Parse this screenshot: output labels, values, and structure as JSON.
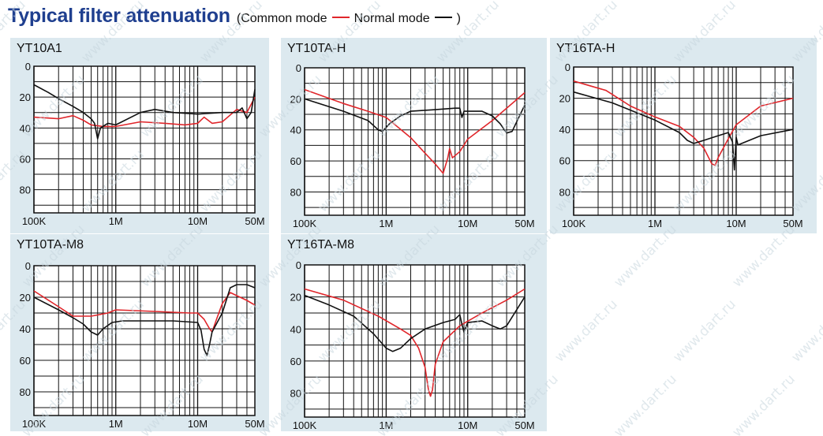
{
  "header": {
    "title": "Typical filter attenuation",
    "legend_prefix": "(Common mode",
    "common_label": "Normal mode",
    "legend_suffix": ")"
  },
  "colors": {
    "common": "#e0262b",
    "normal": "#111111",
    "title": "#1f3f8f",
    "panel": "#dce9ef"
  },
  "chart_data": [
    {
      "type": "line",
      "title": "YT10A1",
      "xscale": "log",
      "xlim": [
        100000,
        50000000
      ],
      "ylim": [
        0,
        95
      ],
      "y_ticks": [
        0,
        20,
        40,
        60,
        80
      ],
      "x_ticks": [
        "100K",
        "1M",
        "10M",
        "50M"
      ],
      "xlabel": "",
      "ylabel": "",
      "series": [
        {
          "name": "Common mode",
          "points": [
            [
              100000,
              33
            ],
            [
              200000,
              34
            ],
            [
              300000,
              32
            ],
            [
              400000,
              35
            ],
            [
              500000,
              38
            ],
            [
              700000,
              39
            ],
            [
              1000000,
              39
            ],
            [
              2000000,
              36
            ],
            [
              4000000,
              37
            ],
            [
              7000000,
              38
            ],
            [
              10000000,
              37
            ],
            [
              12000000,
              33
            ],
            [
              15000000,
              37
            ],
            [
              20000000,
              36
            ],
            [
              30000000,
              28
            ],
            [
              40000000,
              30
            ],
            [
              50000000,
              20
            ]
          ]
        },
        {
          "name": "Normal mode",
          "points": [
            [
              100000,
              12
            ],
            [
              150000,
              17
            ],
            [
              200000,
              21
            ],
            [
              300000,
              26
            ],
            [
              400000,
              30
            ],
            [
              500000,
              34
            ],
            [
              550000,
              37
            ],
            [
              600000,
              47
            ],
            [
              650000,
              40
            ],
            [
              800000,
              37
            ],
            [
              1000000,
              38
            ],
            [
              2000000,
              30
            ],
            [
              3000000,
              28
            ],
            [
              5000000,
              30
            ],
            [
              10000000,
              31
            ],
            [
              20000000,
              30
            ],
            [
              30000000,
              30
            ],
            [
              35000000,
              27
            ],
            [
              40000000,
              34
            ],
            [
              45000000,
              30
            ],
            [
              50000000,
              15
            ]
          ]
        }
      ]
    },
    {
      "type": "line",
      "title": "YT10TA-H",
      "xscale": "log",
      "xlim": [
        100000,
        50000000
      ],
      "ylim": [
        0,
        95
      ],
      "y_ticks": [
        0,
        20,
        40,
        60,
        80
      ],
      "x_ticks": [
        "100K",
        "1M",
        "10M",
        "50M"
      ],
      "xlabel": "",
      "ylabel": "",
      "series": [
        {
          "name": "Common mode",
          "points": [
            [
              100000,
              14
            ],
            [
              300000,
              23
            ],
            [
              600000,
              28
            ],
            [
              1000000,
              32
            ],
            [
              2000000,
              45
            ],
            [
              3000000,
              55
            ],
            [
              4000000,
              62
            ],
            [
              5000000,
              68
            ],
            [
              5700000,
              58
            ],
            [
              6000000,
              52
            ],
            [
              6500000,
              58
            ],
            [
              8000000,
              54
            ],
            [
              10000000,
              46
            ],
            [
              20000000,
              34
            ],
            [
              50000000,
              16
            ]
          ]
        },
        {
          "name": "Normal mode",
          "points": [
            [
              100000,
              20
            ],
            [
              300000,
              28
            ],
            [
              600000,
              34
            ],
            [
              800000,
              40
            ],
            [
              900000,
              41
            ],
            [
              1100000,
              36
            ],
            [
              1500000,
              31
            ],
            [
              2000000,
              28
            ],
            [
              4000000,
              27
            ],
            [
              7000000,
              26
            ],
            [
              8000000,
              26
            ],
            [
              8500000,
              32
            ],
            [
              9000000,
              28
            ],
            [
              15000000,
              28
            ],
            [
              20000000,
              31
            ],
            [
              25000000,
              36
            ],
            [
              30000000,
              42
            ],
            [
              35000000,
              41
            ],
            [
              50000000,
              24
            ]
          ]
        }
      ]
    },
    {
      "type": "line",
      "title": "YT16TA-H",
      "xscale": "log",
      "xlim": [
        100000,
        50000000
      ],
      "ylim": [
        0,
        95
      ],
      "y_ticks": [
        0,
        20,
        40,
        60,
        80
      ],
      "x_ticks": [
        "100K",
        "1M",
        "10M",
        "50M"
      ],
      "xlabel": "",
      "ylabel": "",
      "series": [
        {
          "name": "Common mode",
          "points": [
            [
              100000,
              9
            ],
            [
              250000,
              15
            ],
            [
              500000,
              25
            ],
            [
              1000000,
              32
            ],
            [
              2000000,
              38
            ],
            [
              3000000,
              45
            ],
            [
              4000000,
              52
            ],
            [
              5000000,
              62
            ],
            [
              5500000,
              63
            ],
            [
              6000000,
              58
            ],
            [
              8000000,
              46
            ],
            [
              10000000,
              37
            ],
            [
              20000000,
              25
            ],
            [
              50000000,
              20
            ]
          ]
        },
        {
          "name": "Normal mode",
          "points": [
            [
              100000,
              16
            ],
            [
              300000,
              23
            ],
            [
              1000000,
              34
            ],
            [
              2000000,
              42
            ],
            [
              2500000,
              47
            ],
            [
              3000000,
              49
            ],
            [
              4000000,
              47
            ],
            [
              6000000,
              44
            ],
            [
              8000000,
              42
            ],
            [
              9000000,
              48
            ],
            [
              9500000,
              66
            ],
            [
              10000000,
              45
            ],
            [
              10500000,
              50
            ],
            [
              20000000,
              44
            ],
            [
              50000000,
              40
            ]
          ]
        }
      ]
    },
    {
      "type": "line",
      "title": "YT10TA-M8",
      "xscale": "log",
      "xlim": [
        100000,
        50000000
      ],
      "ylim": [
        0,
        95
      ],
      "y_ticks": [
        0,
        20,
        40,
        60,
        80
      ],
      "x_ticks": [
        "100K",
        "1M",
        "10M",
        "50M"
      ],
      "xlabel": "",
      "ylabel": "",
      "series": [
        {
          "name": "Common mode",
          "points": [
            [
              100000,
              16
            ],
            [
              200000,
              26
            ],
            [
              300000,
              32
            ],
            [
              500000,
              32
            ],
            [
              800000,
              30
            ],
            [
              1000000,
              28
            ],
            [
              3000000,
              29
            ],
            [
              8000000,
              30
            ],
            [
              10000000,
              30
            ],
            [
              12000000,
              34
            ],
            [
              14000000,
              40
            ],
            [
              15000000,
              42
            ],
            [
              17000000,
              34
            ],
            [
              20000000,
              24
            ],
            [
              25000000,
              17
            ],
            [
              30000000,
              19
            ],
            [
              40000000,
              22
            ],
            [
              50000000,
              25
            ]
          ]
        },
        {
          "name": "Normal mode",
          "points": [
            [
              100000,
              20
            ],
            [
              200000,
              28
            ],
            [
              300000,
              33
            ],
            [
              400000,
              37
            ],
            [
              500000,
              42
            ],
            [
              600000,
              44
            ],
            [
              700000,
              40
            ],
            [
              900000,
              36
            ],
            [
              1200000,
              35
            ],
            [
              3000000,
              35
            ],
            [
              5000000,
              35
            ],
            [
              10000000,
              36
            ],
            [
              11000000,
              41
            ],
            [
              12000000,
              53
            ],
            [
              13000000,
              57
            ],
            [
              14000000,
              50
            ],
            [
              15000000,
              42
            ],
            [
              20000000,
              30
            ],
            [
              25000000,
              14
            ],
            [
              30000000,
              12
            ],
            [
              40000000,
              12
            ],
            [
              50000000,
              14
            ]
          ]
        }
      ]
    },
    {
      "type": "line",
      "title": "YT16TA-M8",
      "xscale": "log",
      "xlim": [
        100000,
        50000000
      ],
      "ylim": [
        0,
        95
      ],
      "y_ticks": [
        0,
        20,
        40,
        60,
        80
      ],
      "x_ticks": [
        "100K",
        "1M",
        "10M",
        "50M"
      ],
      "xlabel": "",
      "ylabel": "",
      "series": [
        {
          "name": "Common mode",
          "points": [
            [
              100000,
              15
            ],
            [
              300000,
              22
            ],
            [
              800000,
              32
            ],
            [
              1500000,
              40
            ],
            [
              2000000,
              44
            ],
            [
              2500000,
              52
            ],
            [
              3000000,
              64
            ],
            [
              3300000,
              78
            ],
            [
              3500000,
              82
            ],
            [
              3700000,
              78
            ],
            [
              4000000,
              62
            ],
            [
              5000000,
              48
            ],
            [
              8000000,
              38
            ],
            [
              15000000,
              30
            ],
            [
              30000000,
              22
            ],
            [
              50000000,
              15
            ]
          ]
        },
        {
          "name": "Normal mode",
          "points": [
            [
              100000,
              19
            ],
            [
              200000,
              25
            ],
            [
              400000,
              32
            ],
            [
              700000,
              43
            ],
            [
              1000000,
              52
            ],
            [
              1200000,
              54
            ],
            [
              1500000,
              52
            ],
            [
              2000000,
              46
            ],
            [
              3000000,
              40
            ],
            [
              5000000,
              36
            ],
            [
              7000000,
              34
            ],
            [
              8000000,
              31
            ],
            [
              8500000,
              37
            ],
            [
              9000000,
              42
            ],
            [
              10000000,
              36
            ],
            [
              15000000,
              35
            ],
            [
              20000000,
              38
            ],
            [
              25000000,
              40
            ],
            [
              30000000,
              38
            ],
            [
              50000000,
              20
            ]
          ]
        }
      ]
    }
  ],
  "watermark_text": "www.dart.ru"
}
